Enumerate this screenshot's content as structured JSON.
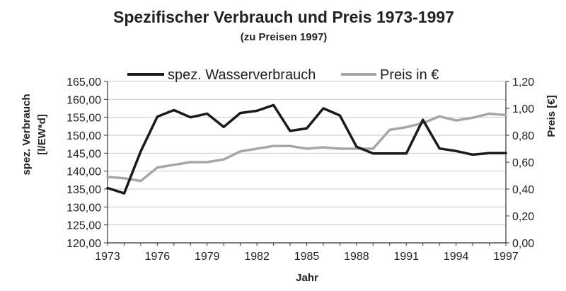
{
  "chart_data": {
    "type": "line",
    "title": "Spezifischer Verbrauch und Preis 1973-1997",
    "subtitle": "(zu Preisen 1997)",
    "xlabel": "Jahr",
    "ylabel_left": [
      "spez. Verbrauch",
      "[l/EW*d]"
    ],
    "ylabel_right": "Preis [€]",
    "x": [
      1973,
      1974,
      1975,
      1976,
      1977,
      1978,
      1979,
      1980,
      1981,
      1982,
      1983,
      1984,
      1985,
      1986,
      1987,
      1988,
      1989,
      1990,
      1991,
      1992,
      1993,
      1994,
      1995,
      1996,
      1997
    ],
    "x_ticks": [
      "1973",
      "1976",
      "1979",
      "1982",
      "1985",
      "1988",
      "1991",
      "1994",
      "1997"
    ],
    "ylim_left": [
      120,
      165
    ],
    "y_ticks_left": [
      "120,00",
      "125,00",
      "130,00",
      "135,00",
      "140,00",
      "145,00",
      "150,00",
      "155,00",
      "160,00",
      "165,00"
    ],
    "ylim_right": [
      0,
      1.2
    ],
    "y_ticks_right": [
      "0,00",
      "0,20",
      "0,40",
      "0,60",
      "0,80",
      "1,00",
      "1,20"
    ],
    "legend": [
      "spez. Wasserverbrauch",
      "Preis in €"
    ],
    "series": [
      {
        "name": "spez. Wasserverbrauch",
        "axis": "left",
        "color": "#1a1a1a",
        "values": [
          135.3,
          133.8,
          145.5,
          155.2,
          157.0,
          155.0,
          156.0,
          152.3,
          156.2,
          156.8,
          158.4,
          151.2,
          151.9,
          157.5,
          155.5,
          146.8,
          144.9,
          144.9,
          144.9,
          154.3,
          146.3,
          145.6,
          144.6,
          145.0,
          145.0
        ]
      },
      {
        "name": "Preis in €",
        "axis": "right",
        "color": "#a6a6a6",
        "values": [
          0.49,
          0.48,
          0.46,
          0.56,
          0.58,
          0.6,
          0.6,
          0.62,
          0.68,
          0.7,
          0.72,
          0.72,
          0.7,
          0.71,
          0.7,
          0.7,
          0.7,
          0.84,
          0.86,
          0.89,
          0.94,
          0.91,
          0.93,
          0.96,
          0.95
        ]
      }
    ]
  }
}
